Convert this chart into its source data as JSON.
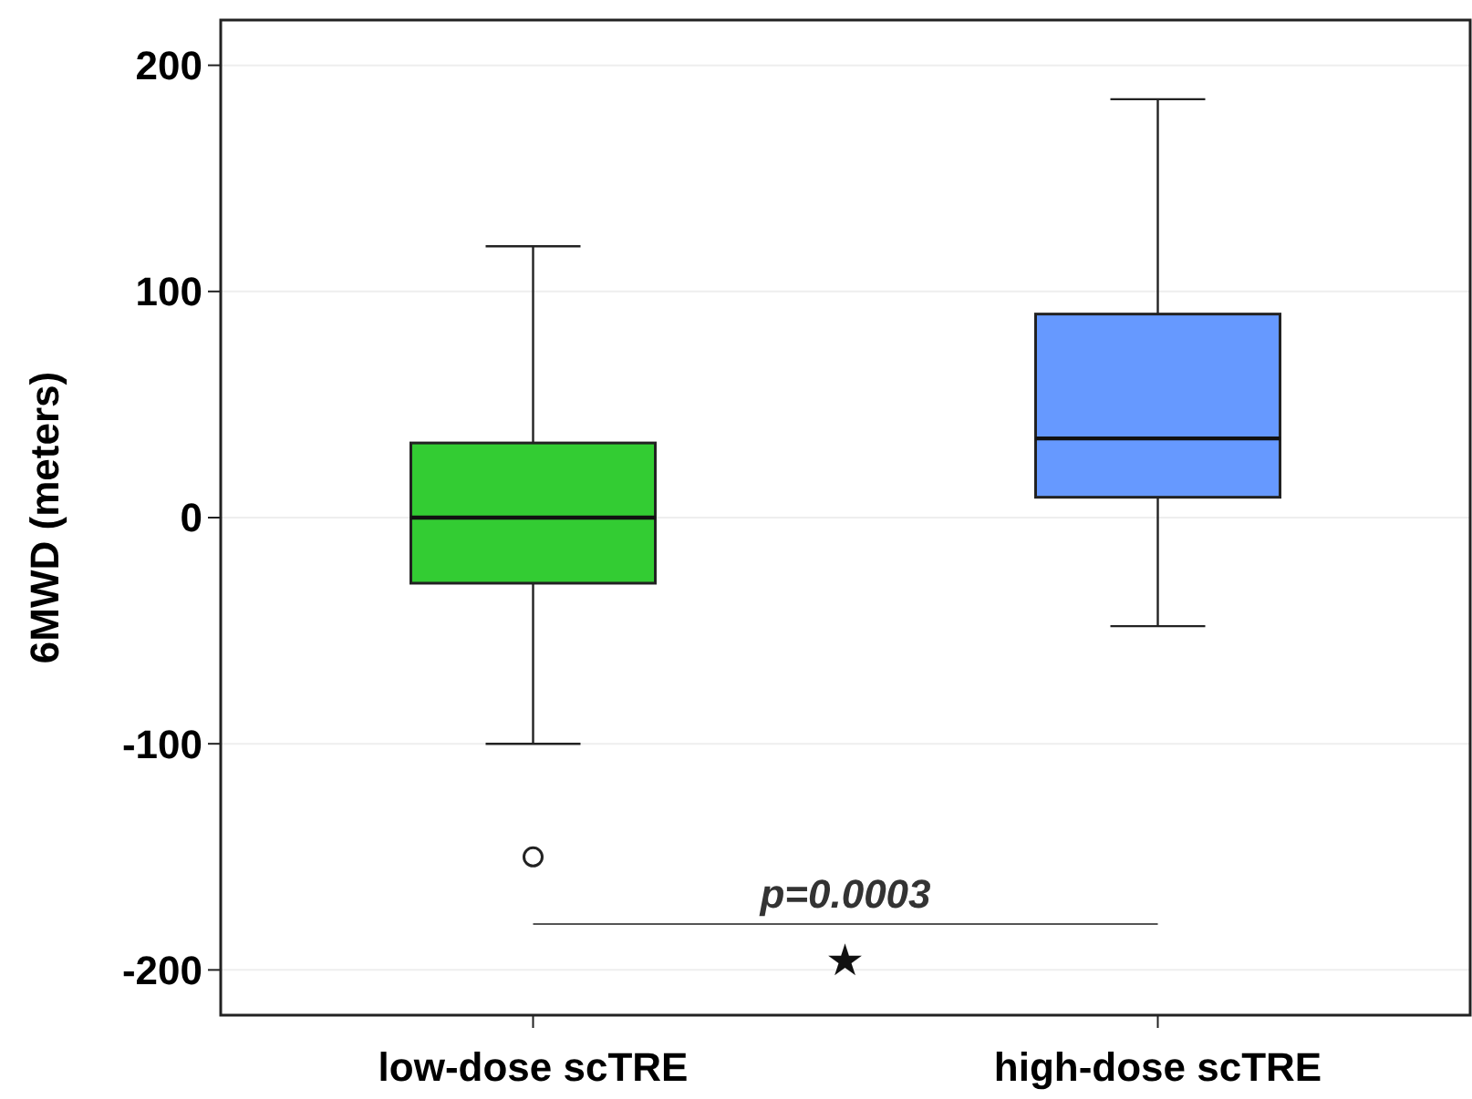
{
  "chart_data": {
    "type": "box",
    "ylabel": "6MWD (meters)",
    "categories": [
      "low-dose scTRE",
      "high-dose scTRE"
    ],
    "boxes": [
      {
        "low": -100,
        "q1": -29,
        "median": 0,
        "q3": 33,
        "high": 120,
        "outliers": [
          -150
        ]
      },
      {
        "low": -48,
        "q1": 9,
        "median": 35,
        "q3": 90,
        "high": 185
      }
    ],
    "colors": [
      "#33cc33",
      "#6699ff"
    ],
    "ylim": [
      -220,
      220
    ],
    "yticks": [
      -200,
      -100,
      0,
      100,
      200
    ],
    "grid": "y",
    "annotations": [
      "p=0.0003",
      "★"
    ]
  }
}
